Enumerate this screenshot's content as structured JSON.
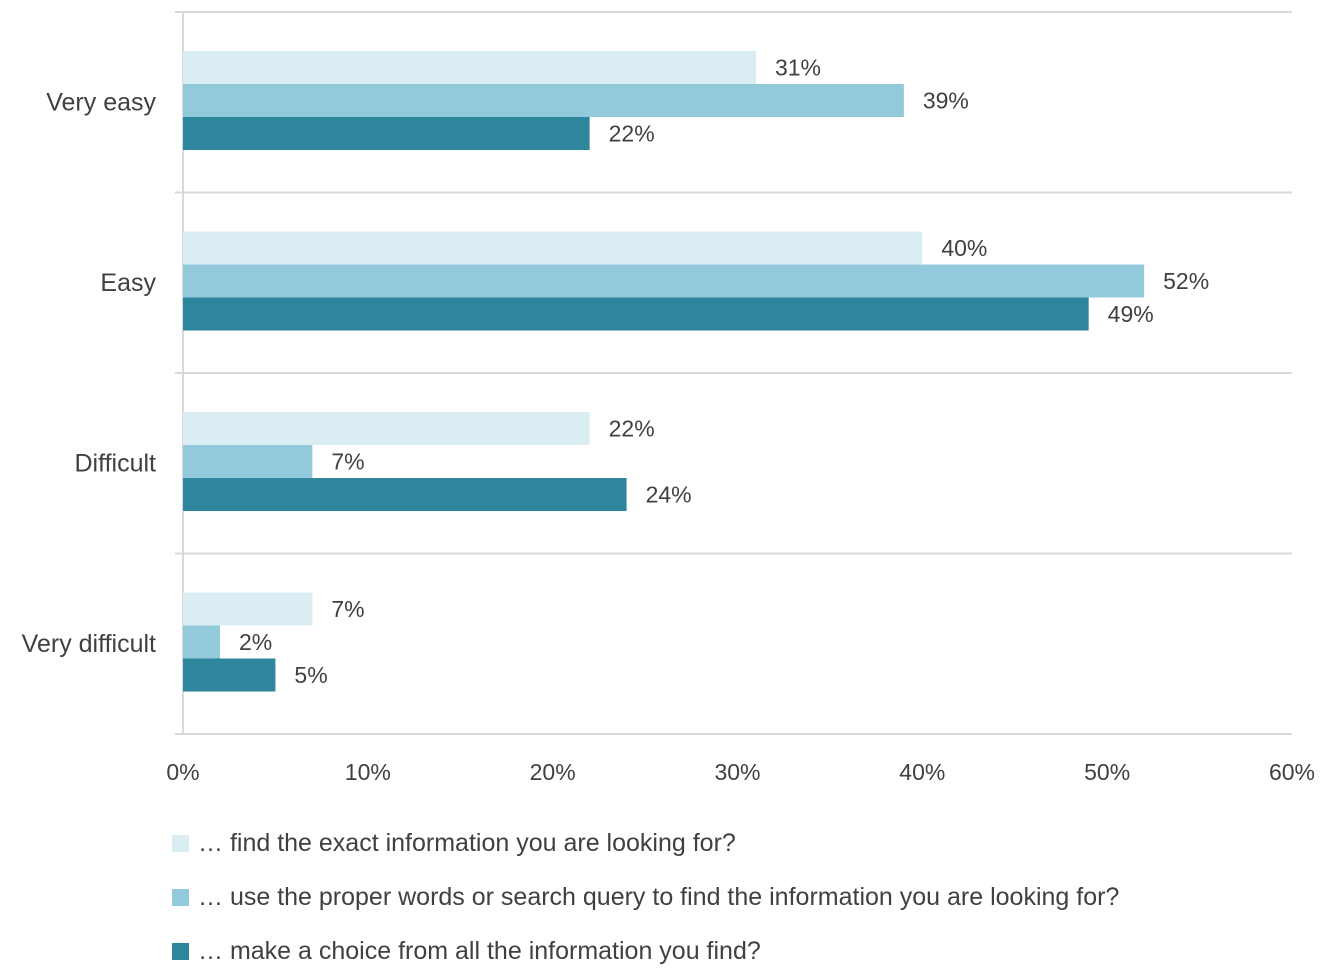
{
  "chart_data": {
    "type": "bar",
    "orientation": "horizontal",
    "categories": [
      "Very easy",
      "Easy",
      "Difficult",
      "Very difficult"
    ],
    "series": [
      {
        "name": "… find the exact information you are looking for?",
        "values": [
          31,
          40,
          22,
          7
        ],
        "color": "#daedf3"
      },
      {
        "name": "… use the proper words or search query to find the information you are looking for?",
        "values": [
          39,
          52,
          7,
          2
        ],
        "color": "#92cadb"
      },
      {
        "name": "… make a choice from all the information you find?",
        "values": [
          22,
          49,
          24,
          5
        ],
        "color": "#2e869d"
      }
    ],
    "xlim": [
      0,
      60
    ],
    "xticks": [
      0,
      10,
      20,
      30,
      40,
      50,
      60
    ],
    "tick_suffix": "%",
    "value_suffix": "%",
    "grid": "horizontal category separators",
    "legend_position": "bottom"
  }
}
